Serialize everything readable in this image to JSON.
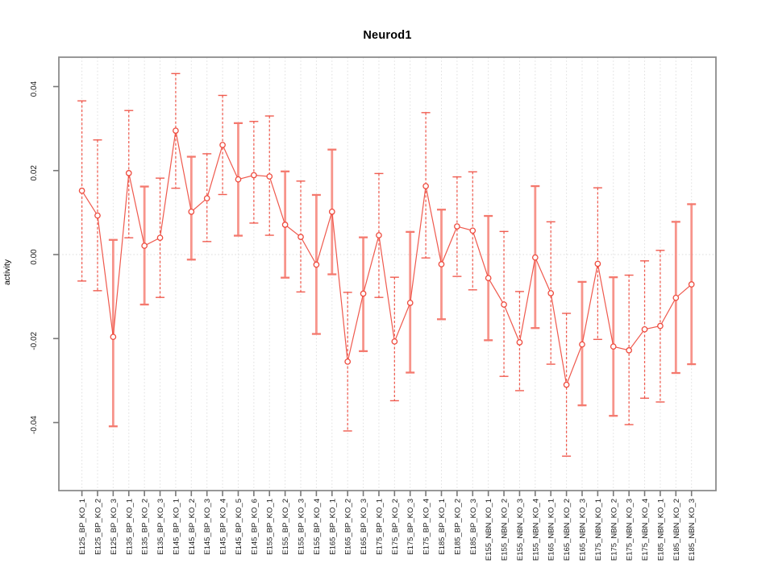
{
  "chart_data": {
    "type": "line",
    "title": "Neurod1",
    "xlabel": "",
    "ylabel": "activity",
    "marker": "open-circle",
    "error_bars": true,
    "legend": "none",
    "grid": {
      "vertical": "dotted-per-category",
      "horizontal": "dotted-at-zero-only"
    },
    "ylim": [
      -0.0562,
      0.047
    ],
    "yticks": [
      -0.04,
      -0.02,
      0,
      0.02,
      0.04
    ],
    "ytick_labels": [
      "-0.04",
      "-0.02",
      "0.00",
      "0.02",
      "0.04"
    ],
    "categories": [
      "E125_BP_KO_1",
      "E125_BP_KO_2",
      "E125_BP_KO_3",
      "E135_BP_KO_1",
      "E135_BP_KO_2",
      "E135_BP_KO_3",
      "E145_BP_KO_1",
      "E145_BP_KO_2",
      "E145_BP_KO_3",
      "E145_BP_KO_4",
      "E145_BP_KO_5",
      "E145_BP_KO_6",
      "E155_BP_KO_1",
      "E155_BP_KO_2",
      "E155_BP_KO_3",
      "E155_BP_KO_4",
      "E165_BP_KO_1",
      "E165_BP_KO_2",
      "E165_BP_KO_3",
      "E175_BP_KO_1",
      "E175_BP_KO_2",
      "E175_BP_KO_3",
      "E175_BP_KO_4",
      "E185_BP_KO_1",
      "E185_BP_KO_2",
      "E185_BP_KO_3",
      "E155_NBN_KO_1",
      "E155_NBN_KO_2",
      "E155_NBN_KO_3",
      "E155_NBN_KO_4",
      "E165_NBN_KO_1",
      "E165_NBN_KO_2",
      "E165_NBN_KO_3",
      "E175_NBN_KO_1",
      "E175_NBN_KO_2",
      "E175_NBN_KO_3",
      "E175_NBN_KO_4",
      "E185_NBN_KO_1",
      "E185_NBN_KO_2",
      "E185_NBN_KO_3"
    ],
    "series": [
      {
        "name": "activity",
        "values": [
          0.0152,
          0.0093,
          -0.0196,
          0.0194,
          0.0021,
          0.004,
          0.0295,
          0.0102,
          0.0134,
          0.0261,
          0.0179,
          0.0189,
          0.0186,
          0.0071,
          0.0042,
          -0.0024,
          0.0102,
          -0.0255,
          -0.0093,
          0.0046,
          -0.0207,
          -0.0115,
          0.0163,
          -0.0023,
          0.0067,
          0.0057,
          -0.0056,
          -0.0119,
          -0.0209,
          -0.0007,
          -0.0092,
          -0.031,
          -0.0214,
          -0.0022,
          -0.0219,
          -0.0228,
          -0.0178,
          -0.017,
          -0.0103,
          -0.0071
        ],
        "error_low": [
          -0.0063,
          -0.0086,
          -0.0409,
          0.004,
          -0.0119,
          -0.0102,
          0.0158,
          -0.0012,
          0.0031,
          0.0143,
          0.0045,
          0.0075,
          0.0046,
          -0.0055,
          -0.0089,
          -0.0189,
          -0.0047,
          -0.042,
          -0.023,
          -0.0102,
          -0.0348,
          -0.0281,
          -0.0008,
          -0.0154,
          -0.0052,
          -0.0084,
          -0.0204,
          -0.029,
          -0.0324,
          -0.0175,
          -0.0261,
          -0.048,
          -0.0359,
          -0.0202,
          -0.0384,
          -0.0405,
          -0.0342,
          -0.0351,
          -0.0282,
          -0.0261
        ],
        "error_high": [
          0.0366,
          0.0273,
          0.0035,
          0.0343,
          0.0162,
          0.0182,
          0.0431,
          0.0233,
          0.024,
          0.0379,
          0.0313,
          0.0317,
          0.033,
          0.0198,
          0.0175,
          0.0142,
          0.025,
          -0.009,
          0.0041,
          0.0193,
          -0.0054,
          0.0054,
          0.0338,
          0.0107,
          0.0185,
          0.0197,
          0.0092,
          0.0055,
          -0.0088,
          0.0163,
          0.0078,
          -0.014,
          -0.0065,
          0.0159,
          -0.0054,
          -0.0049,
          -0.0015,
          0.001,
          0.0078,
          0.012
        ],
        "bar_style": [
          "dashed",
          "dashed",
          "solid",
          "dashed",
          "solid",
          "dashed",
          "dashed",
          "solid",
          "dashed",
          "dashed",
          "solid",
          "dashed",
          "dashed",
          "solid",
          "dashed",
          "solid",
          "solid",
          "dashed",
          "solid",
          "dashed",
          "dashed",
          "solid",
          "dashed",
          "solid",
          "dashed",
          "dashed",
          "solid",
          "dashed",
          "dashed",
          "solid",
          "dashed",
          "dashed",
          "solid",
          "dashed",
          "solid",
          "dashed",
          "dashed",
          "dashed",
          "solid",
          "solid"
        ]
      }
    ],
    "colors": {
      "line": "#ee4b3e",
      "marker": "#ee4b3e",
      "bar_dashed": "#ee4b3e",
      "bar_solid": "#f7948b",
      "cap_solid": "#f4796e",
      "grid": "#e0e0e0",
      "zero_line": "#dcdcdc",
      "box": "#8c8c8c",
      "tick": "#787878",
      "text": "#1a1a1a"
    }
  }
}
